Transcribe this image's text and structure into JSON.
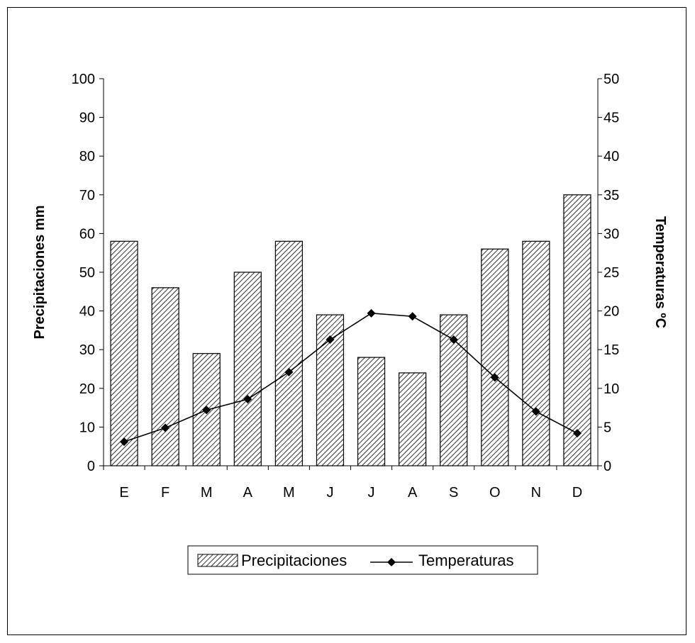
{
  "chart_data": {
    "type": "bar",
    "categories": [
      "E",
      "F",
      "M",
      "A",
      "M",
      "J",
      "J",
      "A",
      "S",
      "O",
      "N",
      "D"
    ],
    "series": [
      {
        "name": "Precipitaciones",
        "kind": "bar",
        "axis": "left",
        "values": [
          58,
          46,
          29,
          50,
          58,
          39,
          28,
          24,
          39,
          56,
          58,
          70
        ]
      },
      {
        "name": "Temperaturas",
        "kind": "line",
        "axis": "right",
        "values": [
          3.1,
          4.9,
          7.2,
          8.6,
          12.1,
          16.3,
          19.7,
          19.3,
          16.3,
          11.4,
          7.0,
          4.2
        ]
      }
    ],
    "ylabel": "Precipitaciones mm",
    "y2label": "Temperaturas ºC",
    "ylim": [
      0,
      100
    ],
    "y2lim": [
      0,
      50
    ],
    "yticks": [
      "0",
      "10",
      "20",
      "30",
      "40",
      "50",
      "60",
      "70",
      "80",
      "90",
      "100"
    ],
    "y2ticks": [
      "0",
      "5",
      "10",
      "15",
      "20",
      "25",
      "30",
      "35",
      "40",
      "45",
      "50"
    ],
    "legend_position": "bottom",
    "grid": false,
    "bar_fill": "diagonal-hatch",
    "colors": {
      "bar_stroke": "#000000",
      "hatch": "#000000",
      "line": "#000000",
      "marker": "#000000"
    }
  }
}
